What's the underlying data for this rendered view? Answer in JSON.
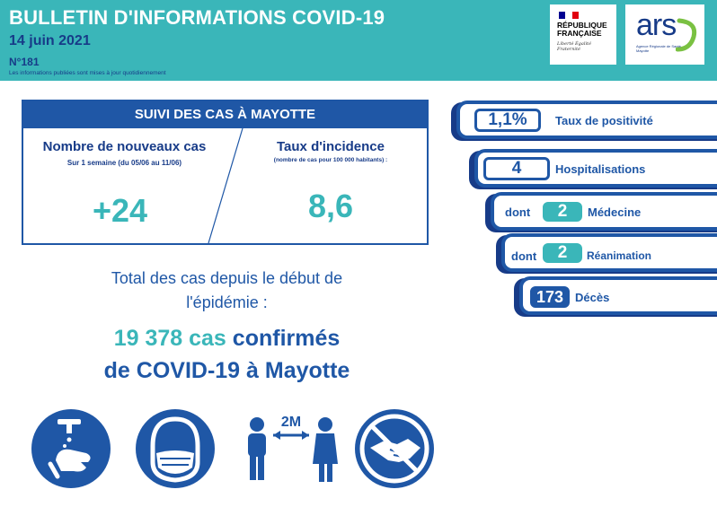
{
  "header": {
    "title": "BULLETIN D'INFORMATIONS COVID-19",
    "date": "14 juin 2021",
    "number": "N°181",
    "note": "Les informations publiées sont mises à jour quotidiennement"
  },
  "logos": {
    "republique": "RÉPUBLIQUE FRANÇAISE",
    "motto": "Liberté Égalité Fraternité",
    "ars": "ars",
    "ars_sub": "Agence Régionale de Santé Mayotte"
  },
  "suivi": {
    "title": "SUIVI DES CAS À MAYOTTE",
    "left_title": "Nombre de nouveaux cas",
    "left_sub": "Sur 1 semaine (du 05/06 au 11/06)",
    "left_value": "+24",
    "right_title": "Taux d'incidence",
    "right_sub": "(nombre de cas pour 100 000 habitants) :",
    "right_value": "8,6"
  },
  "total": {
    "line1": "Total des cas depuis le début de",
    "line2": "l'épidémie :",
    "cases": "19 378 cas",
    "confirmed": "confirmés",
    "line4": "de COVID-19 à Mayotte"
  },
  "stats": {
    "positivity": {
      "value": "1,1%",
      "label": "Taux de positivité"
    },
    "hospital": {
      "value": "4",
      "label": "Hospitalisations"
    },
    "medecine": {
      "prefix": "dont",
      "value": "2",
      "label": "Médecine"
    },
    "reanimation": {
      "prefix": "dont",
      "value": "2",
      "label": "Réanimation"
    },
    "deces": {
      "value": "173",
      "label": "Décès"
    }
  },
  "icons": {
    "distance_label": "2M",
    "items": [
      "hand-washing-icon",
      "mask-icon",
      "distance-icon",
      "no-handshake-icon"
    ]
  },
  "colors": {
    "teal": "#3ab6b9",
    "navy": "#173b88",
    "blue": "#1f57a6"
  }
}
